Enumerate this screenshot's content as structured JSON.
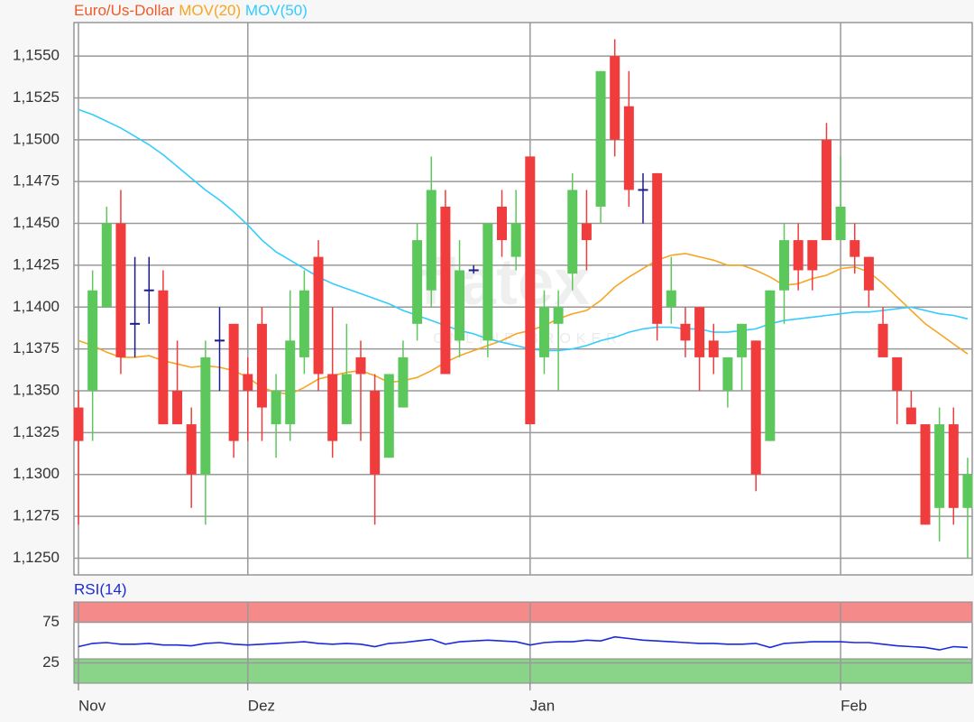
{
  "chart_data": [
    {
      "type": "candlestick",
      "name": "Euro/Us-Dollar",
      "color": "#f05a28",
      "up_color": "#5cc85c",
      "down_color": "#f03c3c",
      "doji_color": "#1c1c8c",
      "categories": [
        "Nov",
        null,
        null,
        null,
        null,
        null,
        null,
        null,
        null,
        null,
        null,
        null,
        "Dez",
        null,
        null,
        null,
        null,
        null,
        null,
        null,
        null,
        null,
        null,
        null,
        null,
        null,
        null,
        null,
        null,
        null,
        null,
        null,
        "Jan",
        null,
        null,
        null,
        null,
        null,
        null,
        null,
        null,
        null,
        null,
        null,
        null,
        null,
        null,
        null,
        null,
        null,
        null,
        null,
        null,
        null,
        "Feb",
        null,
        null,
        null,
        null,
        null,
        null,
        null,
        null,
        null
      ],
      "open": [
        1.134,
        1.135,
        1.14,
        1.145,
        1.139,
        1.141,
        1.141,
        1.135,
        1.133,
        1.13,
        1.138,
        1.139,
        1.136,
        1.139,
        1.133,
        1.133,
        1.137,
        1.143,
        1.136,
        1.133,
        1.137,
        1.135,
        1.131,
        1.134,
        1.139,
        1.141,
        1.146,
        1.138,
        1.1422,
        1.138,
        1.146,
        1.143,
        1.149,
        1.137,
        1.139,
        1.142,
        1.145,
        1.146,
        1.155,
        1.152,
        1.147,
        1.148,
        1.14,
        1.139,
        1.14,
        1.138,
        1.135,
        1.137,
        1.138,
        1.132,
        1.141,
        1.144,
        1.144,
        1.15,
        1.144,
        1.144,
        1.143,
        1.139,
        1.137,
        1.134,
        1.133,
        1.128,
        1.133,
        1.128
      ],
      "high": [
        1.135,
        1.1422,
        1.146,
        1.147,
        1.143,
        1.143,
        1.1422,
        1.138,
        1.134,
        1.138,
        1.14,
        1.139,
        1.137,
        1.14,
        1.136,
        1.141,
        1.1422,
        1.144,
        1.14,
        1.139,
        1.138,
        1.136,
        1.136,
        1.138,
        1.145,
        1.149,
        1.147,
        1.144,
        1.1425,
        1.145,
        1.147,
        1.147,
        1.149,
        1.141,
        1.141,
        1.148,
        1.147,
        1.1541,
        1.156,
        1.1541,
        1.148,
        1.148,
        1.143,
        1.14,
        1.14,
        1.139,
        1.137,
        1.139,
        1.138,
        1.141,
        1.145,
        1.145,
        1.144,
        1.151,
        1.149,
        1.145,
        1.143,
        1.14,
        1.137,
        1.135,
        1.133,
        1.134,
        1.134,
        1.131
      ],
      "low": [
        1.127,
        1.132,
        1.14,
        1.136,
        1.137,
        1.139,
        1.133,
        1.133,
        1.128,
        1.127,
        1.135,
        1.131,
        1.132,
        1.132,
        1.131,
        1.132,
        1.136,
        1.135,
        1.131,
        1.133,
        1.132,
        1.127,
        1.131,
        1.134,
        1.138,
        1.14,
        1.136,
        1.137,
        1.142,
        1.137,
        1.143,
        1.1422,
        1.133,
        1.136,
        1.135,
        1.141,
        1.1422,
        1.145,
        1.149,
        1.146,
        1.145,
        1.138,
        1.139,
        1.137,
        1.135,
        1.136,
        1.134,
        1.135,
        1.129,
        1.132,
        1.139,
        1.141,
        1.141,
        1.144,
        1.144,
        1.142,
        1.14,
        1.137,
        1.133,
        1.133,
        1.127,
        1.126,
        1.127,
        1.125
      ],
      "close": [
        1.132,
        1.141,
        1.145,
        1.137,
        1.139,
        1.141,
        1.133,
        1.133,
        1.13,
        1.137,
        1.138,
        1.132,
        1.135,
        1.134,
        1.135,
        1.138,
        1.141,
        1.136,
        1.132,
        1.136,
        1.136,
        1.13,
        1.136,
        1.137,
        1.144,
        1.147,
        1.136,
        1.1422,
        1.1422,
        1.145,
        1.144,
        1.145,
        1.133,
        1.14,
        1.14,
        1.147,
        1.144,
        1.1541,
        1.15,
        1.147,
        1.147,
        1.139,
        1.141,
        1.138,
        1.137,
        1.137,
        1.137,
        1.139,
        1.13,
        1.141,
        1.144,
        1.1422,
        1.1422,
        1.144,
        1.146,
        1.143,
        1.141,
        1.137,
        1.135,
        1.133,
        1.127,
        1.133,
        1.128,
        1.13
      ],
      "series": [
        {
          "name": "MOV(20)",
          "color": "#f5a623",
          "values": [
            1.138,
            1.1377,
            1.1373,
            1.137,
            1.137,
            1.1371,
            1.1368,
            1.1366,
            1.1364,
            1.1365,
            1.1364,
            1.1362,
            1.1358,
            1.1352,
            1.1349,
            1.1348,
            1.1352,
            1.1357,
            1.1359,
            1.1361,
            1.1362,
            1.1359,
            1.1355,
            1.1356,
            1.1358,
            1.1362,
            1.1367,
            1.1371,
            1.1374,
            1.1377,
            1.138,
            1.1384,
            1.1386,
            1.1389,
            1.1393,
            1.1396,
            1.1398,
            1.1404,
            1.1412,
            1.1418,
            1.1423,
            1.1428,
            1.1431,
            1.1432,
            1.143,
            1.1428,
            1.1425,
            1.1425,
            1.1422,
            1.1418,
            1.1413,
            1.1414,
            1.1417,
            1.1419,
            1.1423,
            1.1424,
            1.1421,
            1.1414,
            1.1406,
            1.1398,
            1.139,
            1.1384,
            1.1378,
            1.1372
          ]
        },
        {
          "name": "MOV(50)",
          "color": "#33ccff",
          "values": [
            1.1518,
            1.1515,
            1.1511,
            1.1507,
            1.1502,
            1.1497,
            1.1491,
            1.1484,
            1.1477,
            1.147,
            1.1464,
            1.1457,
            1.1449,
            1.144,
            1.1433,
            1.1428,
            1.1423,
            1.1418,
            1.1414,
            1.1411,
            1.1408,
            1.1405,
            1.1402,
            1.1398,
            1.1395,
            1.1392,
            1.1389,
            1.1386,
            1.1384,
            1.1381,
            1.1379,
            1.1377,
            1.1375,
            1.1374,
            1.1374,
            1.1375,
            1.1377,
            1.138,
            1.1382,
            1.1385,
            1.1387,
            1.1388,
            1.1388,
            1.1387,
            1.1387,
            1.1385,
            1.1385,
            1.1386,
            1.1387,
            1.139,
            1.1392,
            1.1393,
            1.1394,
            1.1395,
            1.1396,
            1.1397,
            1.1397,
            1.1398,
            1.1399,
            1.14,
            1.1398,
            1.1396,
            1.1395,
            1.1393
          ]
        }
      ],
      "ylim": [
        1.124,
        1.157
      ],
      "yticks": [
        {
          "value": 1.125,
          "label": "1,1250"
        },
        {
          "value": 1.1275,
          "label": "1,1275"
        },
        {
          "value": 1.13,
          "label": "1,1300"
        },
        {
          "value": 1.1325,
          "label": "1,1325"
        },
        {
          "value": 1.135,
          "label": "1,1350"
        },
        {
          "value": 1.1375,
          "label": "1,1375"
        },
        {
          "value": 1.14,
          "label": "1,1400"
        },
        {
          "value": 1.1425,
          "label": "1,1425"
        },
        {
          "value": 1.145,
          "label": "1,1450"
        },
        {
          "value": 1.1475,
          "label": "1,1475"
        },
        {
          "value": 1.15,
          "label": "1,1500"
        },
        {
          "value": 1.1525,
          "label": "1,1525"
        },
        {
          "value": 1.155,
          "label": "1,1550"
        }
      ],
      "grid": true
    },
    {
      "type": "line",
      "series": [
        {
          "name": "RSI(14)",
          "color": "#1a2ad8",
          "values": [
            45,
            49,
            50,
            48,
            48,
            49,
            47,
            47,
            46,
            49,
            50,
            48,
            47,
            48,
            49,
            50,
            51,
            49,
            48,
            49,
            48,
            45,
            49,
            50,
            52,
            54,
            48,
            51,
            52,
            53,
            52,
            51,
            47,
            50,
            51,
            51,
            53,
            52,
            57,
            55,
            53,
            52,
            51,
            50,
            49,
            49,
            48,
            48,
            49,
            44,
            49,
            50,
            51,
            51,
            51,
            50,
            50,
            48,
            46,
            45,
            44,
            41,
            45,
            44
          ]
        }
      ],
      "zones": [
        {
          "range": [
            75,
            100
          ],
          "color": "#f48a8a"
        },
        {
          "range": [
            0,
            30
          ],
          "color": "#8ad48a"
        }
      ],
      "ylim": [
        0,
        100
      ],
      "yticks": [
        25,
        75
      ],
      "grid": true
    }
  ],
  "watermark": {
    "brand": "flatex",
    "tagline": "ONLINE BROKER"
  }
}
